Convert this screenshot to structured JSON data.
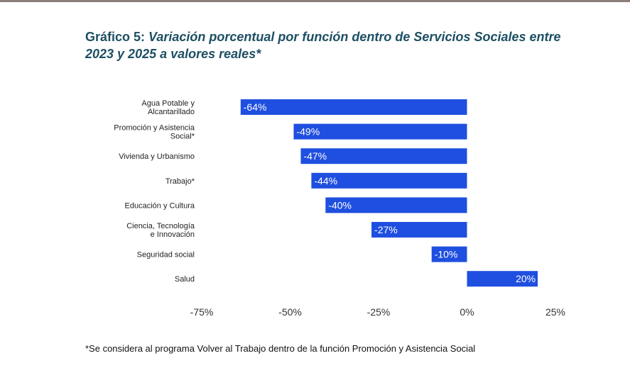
{
  "title_prefix": "Gráfico 5:",
  "title_main": "Variación porcentual por función dentro de Servicios Sociales entre 2023 y 2025 a valores reales*",
  "footnote": "*Se considera al programa Volver al Trabajo dentro de la función Promoción y Asistencia Social",
  "bar_color": "#1f4fe0",
  "chart_data": {
    "type": "bar",
    "orientation": "horizontal",
    "title": "Variación porcentual por función dentro de Servicios Sociales entre 2023 y 2025 a valores reales*",
    "categories": [
      [
        "Agua Potable y",
        "Alcantarillado"
      ],
      [
        "Promoción y Asistencia",
        "Social*"
      ],
      [
        "Vivienda y Urbanismo"
      ],
      [
        "Trabajo*"
      ],
      [
        "Educación y Cultura"
      ],
      [
        "Ciencia, Tecnología",
        "e Innovación"
      ],
      [
        "Seguridad social"
      ],
      [
        "Salud"
      ]
    ],
    "values": [
      -64,
      -49,
      -47,
      -44,
      -40,
      -27,
      -10,
      20
    ],
    "value_labels": [
      "-64%",
      "-49%",
      "-47%",
      "-44%",
      "-40%",
      "-27%",
      "-10%",
      "20%"
    ],
    "xlim": [
      -75,
      25
    ],
    "ticks": [
      -75,
      -50,
      -25,
      0,
      25
    ],
    "tick_labels": [
      "-75%",
      "-50%",
      "-25%",
      "0%",
      "25%"
    ],
    "xlabel": "",
    "ylabel": "",
    "grid": false,
    "legend": "none"
  }
}
